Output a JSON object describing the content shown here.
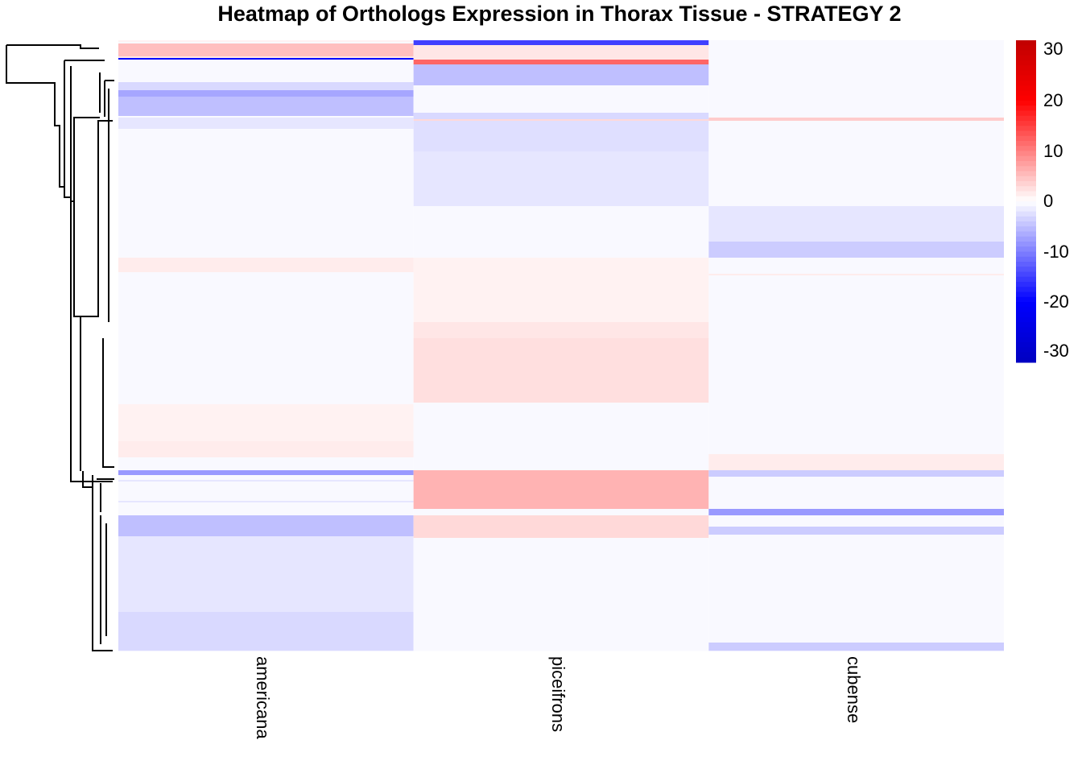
{
  "chart_data": {
    "type": "heatmap",
    "title": "Heatmap of Orthologs Expression in Thorax Tissue - STRATEGY 2",
    "columns": [
      "americana",
      "piceifrons",
      "cubense"
    ],
    "n_rows": 379,
    "color_scale": {
      "min": -32,
      "max": 32,
      "low": "#0000c0",
      "mid_low": "#0000ff",
      "center": "#ffffff",
      "mid_high": "#ff0000",
      "high": "#c00000"
    },
    "legend": {
      "ticks": [
        30,
        20,
        10,
        0,
        -10,
        -20,
        -30
      ],
      "placement": "right"
    },
    "row_dendrogram": true,
    "bands": [
      [
        {
          "from": 0,
          "to": 1,
          "value": 1
        },
        {
          "from": 1,
          "to": 2,
          "value": -0.5
        },
        {
          "from": 2,
          "to": 10,
          "value": 5
        },
        {
          "from": 10,
          "to": 11,
          "value": 2
        },
        {
          "from": 11,
          "to": 12,
          "value": -20
        },
        {
          "from": 12,
          "to": 26,
          "value": -0.5
        },
        {
          "from": 26,
          "to": 31,
          "value": -3
        },
        {
          "from": 31,
          "to": 35,
          "value": -7
        },
        {
          "from": 35,
          "to": 47,
          "value": -5
        },
        {
          "from": 47,
          "to": 48,
          "value": -0.5
        },
        {
          "from": 48,
          "to": 55,
          "value": -2
        },
        {
          "from": 55,
          "to": 135,
          "value": -0.5
        },
        {
          "from": 135,
          "to": 144,
          "value": 1.5
        },
        {
          "from": 144,
          "to": 226,
          "value": -0.5
        },
        {
          "from": 226,
          "to": 249,
          "value": 1
        },
        {
          "from": 249,
          "to": 259,
          "value": 1.5
        },
        {
          "from": 259,
          "to": 267,
          "value": -0.5
        },
        {
          "from": 267,
          "to": 270,
          "value": -8
        },
        {
          "from": 270,
          "to": 273,
          "value": -0.5
        },
        {
          "from": 273,
          "to": 274,
          "value": -2
        },
        {
          "from": 274,
          "to": 286,
          "value": -0.5
        },
        {
          "from": 286,
          "to": 287,
          "value": -2
        },
        {
          "from": 287,
          "to": 295,
          "value": -0.5
        },
        {
          "from": 295,
          "to": 308,
          "value": -5
        },
        {
          "from": 308,
          "to": 355,
          "value": -2
        },
        {
          "from": 355,
          "to": 379,
          "value": -3
        }
      ],
      [
        {
          "from": 0,
          "to": 3,
          "value": -15
        },
        {
          "from": 3,
          "to": 12,
          "value": 2
        },
        {
          "from": 12,
          "to": 15,
          "value": 12
        },
        {
          "from": 15,
          "to": 28,
          "value": -5
        },
        {
          "from": 28,
          "to": 45,
          "value": -0.5
        },
        {
          "from": 45,
          "to": 49,
          "value": -3
        },
        {
          "from": 49,
          "to": 50,
          "value": 3
        },
        {
          "from": 50,
          "to": 69,
          "value": -2.5
        },
        {
          "from": 69,
          "to": 103,
          "value": -2
        },
        {
          "from": 103,
          "to": 135,
          "value": -0.5
        },
        {
          "from": 135,
          "to": 175,
          "value": 1
        },
        {
          "from": 175,
          "to": 185,
          "value": 2
        },
        {
          "from": 185,
          "to": 225,
          "value": 2.5
        },
        {
          "from": 225,
          "to": 267,
          "value": -0.5
        },
        {
          "from": 267,
          "to": 291,
          "value": 6
        },
        {
          "from": 291,
          "to": 295,
          "value": -0.5
        },
        {
          "from": 295,
          "to": 309,
          "value": 3
        },
        {
          "from": 309,
          "to": 379,
          "value": -0.5
        }
      ],
      [
        {
          "from": 0,
          "to": 48,
          "value": -0.5
        },
        {
          "from": 48,
          "to": 50,
          "value": 4
        },
        {
          "from": 50,
          "to": 103,
          "value": -0.5
        },
        {
          "from": 103,
          "to": 125,
          "value": -2
        },
        {
          "from": 125,
          "to": 135,
          "value": -4
        },
        {
          "from": 135,
          "to": 145,
          "value": -0.5
        },
        {
          "from": 145,
          "to": 146,
          "value": 1.5
        },
        {
          "from": 146,
          "to": 257,
          "value": -0.5
        },
        {
          "from": 257,
          "to": 267,
          "value": 1.5
        },
        {
          "from": 267,
          "to": 271,
          "value": -4
        },
        {
          "from": 271,
          "to": 291,
          "value": -0.5
        },
        {
          "from": 291,
          "to": 295,
          "value": -8
        },
        {
          "from": 295,
          "to": 302,
          "value": -0.5
        },
        {
          "from": 302,
          "to": 307,
          "value": -4
        },
        {
          "from": 307,
          "to": 374,
          "value": -0.5
        },
        {
          "from": 374,
          "to": 379,
          "value": -4
        }
      ]
    ]
  }
}
